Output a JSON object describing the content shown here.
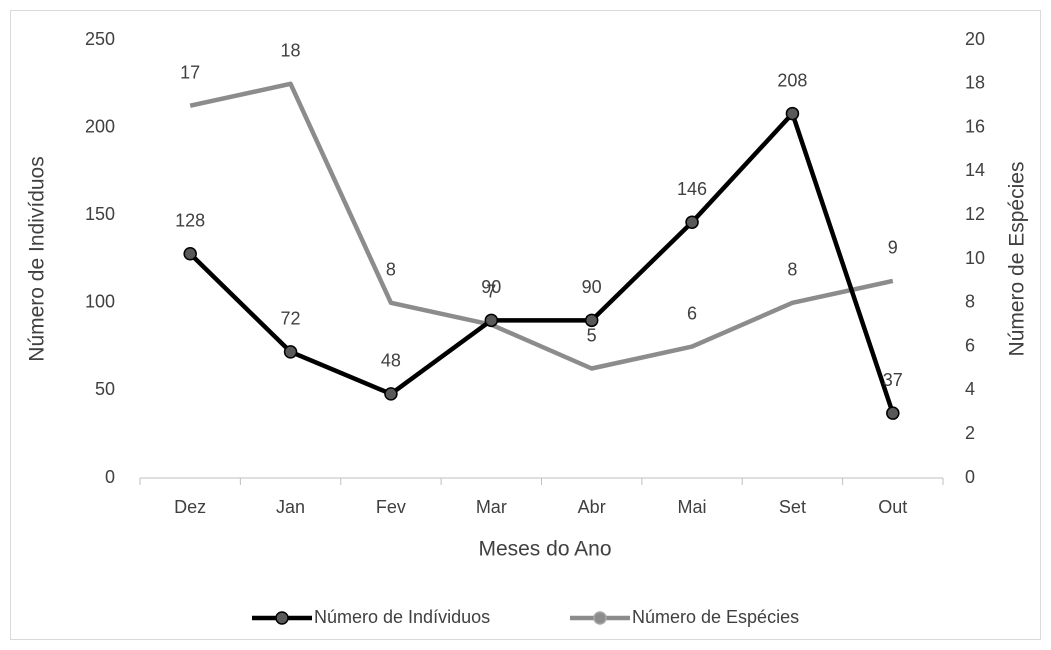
{
  "chart_data": {
    "type": "line",
    "categories": [
      "Dez",
      "Jan",
      "Fev",
      "Mar",
      "Abr",
      "Mai",
      "Set",
      "Out"
    ],
    "series": [
      {
        "name": "Número de Indíviduos",
        "color": "#000000",
        "marker": true,
        "values": [
          128,
          72,
          48,
          90,
          90,
          146,
          208,
          37
        ]
      },
      {
        "name": "Número de Espécies",
        "color": "#8c8c8c",
        "marker": false,
        "axis": "y2",
        "values": [
          17,
          18,
          8,
          7,
          5,
          6,
          8,
          9
        ]
      }
    ],
    "xlabel": "Meses do Ano",
    "ylabel": "Número de Indivíduos",
    "y2label": "Número de Espécies",
    "ylim": [
      0,
      250
    ],
    "yticks": [
      0,
      50,
      100,
      150,
      200,
      250
    ],
    "y2lim": [
      0,
      20
    ],
    "y2ticks": [
      0,
      2,
      4,
      6,
      8,
      10,
      12,
      14,
      16,
      18,
      20
    ],
    "legend": "bottom",
    "grid": false
  }
}
